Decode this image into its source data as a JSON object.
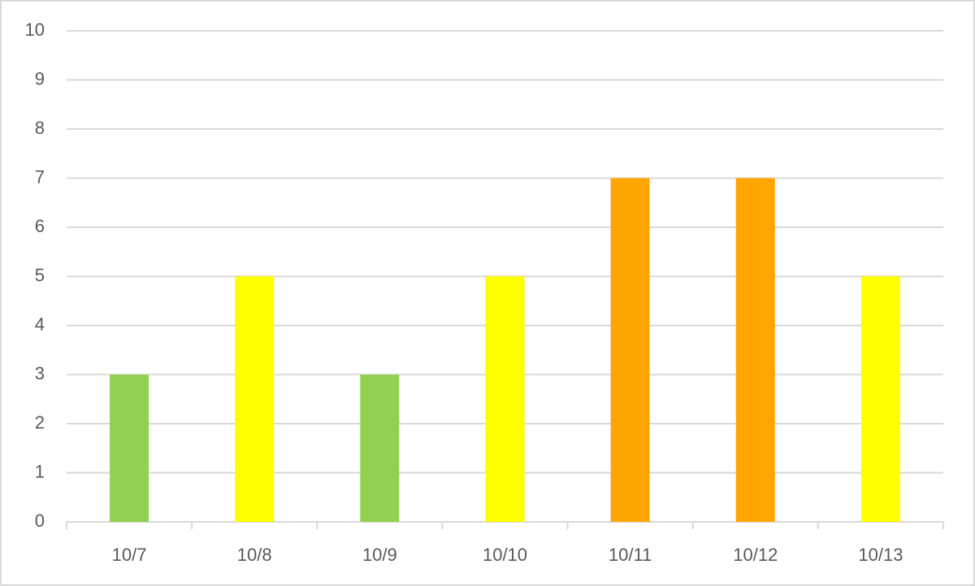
{
  "chart_data": {
    "type": "bar",
    "categories": [
      "10/7",
      "10/8",
      "10/9",
      "10/10",
      "10/11",
      "10/12",
      "10/13"
    ],
    "values": [
      3,
      5,
      3,
      5,
      7,
      7,
      5
    ],
    "colors": [
      "#92d050",
      "#ffff00",
      "#92d050",
      "#ffff00",
      "#ffa500",
      "#ffa500",
      "#ffff00"
    ],
    "ylim": [
      0,
      10
    ],
    "yticks": [
      0,
      1,
      2,
      3,
      4,
      5,
      6,
      7,
      8,
      9,
      10
    ],
    "grid": true
  }
}
